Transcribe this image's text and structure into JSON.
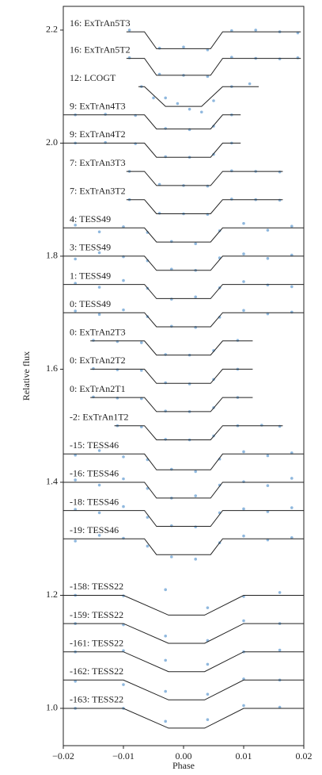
{
  "chart_data": {
    "type": "scatter",
    "xlabel": "Phase",
    "ylabel": "Relative flux",
    "xlim": [
      -0.02,
      0.02
    ],
    "ylim": [
      0.934,
      2.242
    ],
    "xticks": [
      {
        "value": -0.02,
        "label": "−0.02"
      },
      {
        "value": -0.01,
        "label": "−0.01"
      },
      {
        "value": 0,
        "label": "0.00"
      },
      0.01,
      0.02
    ],
    "yticks": [
      {
        "value": 1,
        "label": "1.0"
      },
      1.2,
      1.4,
      1.6,
      1.8,
      {
        "value": 2,
        "label": "2.0"
      },
      2.2
    ],
    "point_color": "#8fb8de",
    "model_color": "#222222",
    "series": [
      {
        "name": "16: ExTrAn5T3",
        "model_x": [
          -0.0095,
          -0.0065,
          -0.0045,
          0.0045,
          0.0065,
          0.0195
        ],
        "model_values": [
          2.197,
          2.197,
          2.167,
          2.167,
          2.197,
          2.197
        ],
        "x": [
          -0.009,
          -0.004,
          0,
          0.004,
          0.008,
          0.012,
          0.016,
          0.019
        ],
        "values": [
          2.2,
          2.168,
          2.17,
          2.165,
          2.199,
          2.2,
          2.197,
          2.195
        ]
      },
      {
        "name": "16: ExTrAn5T2",
        "model_x": [
          -0.0095,
          -0.0065,
          -0.0045,
          0.0045,
          0.0065,
          0.0195
        ],
        "model_values": [
          2.15,
          2.15,
          2.12,
          2.12,
          2.15,
          2.15
        ],
        "x": [
          -0.009,
          -0.004,
          0,
          0.004,
          0.008,
          0.012,
          0.016,
          0.019
        ],
        "values": [
          2.151,
          2.122,
          2.12,
          2.118,
          2.152,
          2.15,
          2.149,
          2.151
        ]
      },
      {
        "name": "12: LCOGT",
        "model_x": [
          -0.0075,
          -0.0065,
          -0.003,
          0.003,
          0.0065,
          0.0125
        ],
        "model_values": [
          2.1,
          2.1,
          2.065,
          2.065,
          2.1,
          2.1
        ],
        "x": [
          -0.007,
          -0.005,
          -0.003,
          -0.001,
          0.001,
          0.003,
          0.005,
          0.008,
          0.011
        ],
        "values": [
          2.1,
          2.08,
          2.08,
          2.07,
          2.06,
          2.055,
          2.075,
          2.1,
          2.105
        ]
      },
      {
        "name": "9: ExTrAn4T3",
        "model_x": [
          -0.02,
          -0.0065,
          -0.0045,
          0.0045,
          0.0065,
          0.0095
        ],
        "model_values": [
          2.05,
          2.05,
          2.025,
          2.025,
          2.05,
          2.05
        ],
        "x": [
          -0.018,
          -0.013,
          -0.008,
          -0.003,
          0.001,
          0.005,
          0.008
        ],
        "values": [
          2.05,
          2.051,
          2.049,
          2.026,
          2.024,
          2.03,
          2.05
        ]
      },
      {
        "name": "9: ExTrAn4T2",
        "model_x": [
          -0.02,
          -0.0065,
          -0.0045,
          0.0045,
          0.0065,
          0.0095
        ],
        "model_values": [
          2.0,
          2.0,
          1.975,
          1.975,
          2.0,
          2.0
        ],
        "x": [
          -0.018,
          -0.013,
          -0.008,
          -0.003,
          0.001,
          0.005,
          0.008
        ],
        "values": [
          2.0,
          2.001,
          1.999,
          1.976,
          1.975,
          1.98,
          2.0
        ]
      },
      {
        "name": "7: ExTrAn3T3",
        "model_x": [
          -0.0095,
          -0.0065,
          -0.0045,
          0.0045,
          0.0065,
          0.0165
        ],
        "model_values": [
          1.95,
          1.95,
          1.925,
          1.925,
          1.95,
          1.95
        ],
        "x": [
          -0.009,
          -0.004,
          0,
          0.004,
          0.008,
          0.012,
          0.016
        ],
        "values": [
          1.95,
          1.927,
          1.925,
          1.924,
          1.951,
          1.95,
          1.949
        ]
      },
      {
        "name": "7: ExTrAn3T2",
        "model_x": [
          -0.0095,
          -0.0065,
          -0.0045,
          0.0045,
          0.0065,
          0.0165
        ],
        "model_values": [
          1.9,
          1.9,
          1.875,
          1.875,
          1.9,
          1.9
        ],
        "x": [
          -0.009,
          -0.004,
          0,
          0.004,
          0.008,
          0.012,
          0.016
        ],
        "values": [
          1.9,
          1.876,
          1.875,
          1.874,
          1.901,
          1.9,
          1.899
        ]
      },
      {
        "name": "4: TESS49",
        "model_x": [
          -0.02,
          -0.0065,
          -0.0045,
          0.0045,
          0.0065,
          0.02
        ],
        "model_values": [
          1.85,
          1.85,
          1.825,
          1.825,
          1.85,
          1.85
        ],
        "x": [
          -0.018,
          -0.014,
          -0.01,
          -0.006,
          -0.002,
          0.002,
          0.006,
          0.01,
          0.014,
          0.018
        ],
        "values": [
          1.855,
          1.843,
          1.852,
          1.842,
          1.826,
          1.822,
          1.845,
          1.858,
          1.846,
          1.853
        ]
      },
      {
        "name": "3: TESS49",
        "model_x": [
          -0.02,
          -0.0065,
          -0.0045,
          0.0045,
          0.0065,
          0.02
        ],
        "model_values": [
          1.8,
          1.8,
          1.775,
          1.775,
          1.8,
          1.8
        ],
        "x": [
          -0.018,
          -0.014,
          -0.01,
          -0.006,
          -0.002,
          0.002,
          0.006,
          0.01,
          0.014,
          0.018
        ],
        "values": [
          1.795,
          1.806,
          1.799,
          1.792,
          1.777,
          1.775,
          1.797,
          1.804,
          1.796,
          1.802
        ]
      },
      {
        "name": "1: TESS49",
        "model_x": [
          -0.02,
          -0.0065,
          -0.0045,
          0.0045,
          0.0065,
          0.02
        ],
        "model_values": [
          1.75,
          1.75,
          1.725,
          1.725,
          1.75,
          1.75
        ],
        "x": [
          -0.018,
          -0.014,
          -0.01,
          -0.006,
          -0.002,
          0.002,
          0.006,
          0.01,
          0.014,
          0.018
        ],
        "values": [
          1.752,
          1.745,
          1.757,
          1.743,
          1.724,
          1.728,
          1.744,
          1.755,
          1.749,
          1.746
        ]
      },
      {
        "name": "0: TESS49",
        "model_x": [
          -0.02,
          -0.0065,
          -0.0045,
          0.0045,
          0.0065,
          0.02
        ],
        "model_values": [
          1.7,
          1.7,
          1.675,
          1.675,
          1.7,
          1.7
        ],
        "x": [
          -0.018,
          -0.014,
          -0.01,
          -0.006,
          -0.002,
          0.002,
          0.006,
          0.01,
          0.014,
          0.018
        ],
        "values": [
          1.703,
          1.697,
          1.705,
          1.693,
          1.676,
          1.674,
          1.692,
          1.704,
          1.698,
          1.701
        ]
      },
      {
        "name": "0: ExTrAn2T3",
        "model_x": [
          -0.0155,
          -0.0065,
          -0.0045,
          0.0045,
          0.0065,
          0.0115
        ],
        "model_values": [
          1.65,
          1.65,
          1.625,
          1.625,
          1.65,
          1.65
        ],
        "x": [
          -0.015,
          -0.011,
          -0.007,
          -0.003,
          0.001,
          0.005,
          0.009
        ],
        "values": [
          1.651,
          1.649,
          1.647,
          1.626,
          1.625,
          1.633,
          1.651
        ]
      },
      {
        "name": "0: ExTrAn2T2",
        "model_x": [
          -0.0155,
          -0.0065,
          -0.0045,
          0.0045,
          0.0065,
          0.0115
        ],
        "model_values": [
          1.6,
          1.6,
          1.575,
          1.575,
          1.6,
          1.6
        ],
        "x": [
          -0.015,
          -0.011,
          -0.007,
          -0.003,
          0.001,
          0.005,
          0.009
        ],
        "values": [
          1.601,
          1.599,
          1.598,
          1.576,
          1.574,
          1.582,
          1.6
        ]
      },
      {
        "name": "0: ExTrAn2T1",
        "model_x": [
          -0.0155,
          -0.0065,
          -0.0045,
          0.0045,
          0.0065,
          0.0115
        ],
        "model_values": [
          1.55,
          1.55,
          1.525,
          1.525,
          1.55,
          1.55
        ],
        "x": [
          -0.015,
          -0.011,
          -0.007,
          -0.003,
          0.001,
          0.005,
          0.009
        ],
        "values": [
          1.551,
          1.549,
          1.548,
          1.526,
          1.525,
          1.532,
          1.55
        ]
      },
      {
        "name": "-2: ExTrAn1T2",
        "model_x": [
          -0.0115,
          -0.0065,
          -0.0045,
          0.0045,
          0.0065,
          0.0165
        ],
        "model_values": [
          1.5,
          1.5,
          1.475,
          1.475,
          1.5,
          1.5
        ],
        "x": [
          -0.011,
          -0.007,
          -0.003,
          0.001,
          0.005,
          0.009,
          0.013,
          0.016
        ],
        "values": [
          1.5,
          1.498,
          1.476,
          1.475,
          1.482,
          1.5,
          1.501,
          1.499
        ]
      },
      {
        "name": "-15: TESS46",
        "model_x": [
          -0.02,
          -0.0065,
          -0.0045,
          0.0045,
          0.0065,
          0.02
        ],
        "model_values": [
          1.45,
          1.45,
          1.422,
          1.422,
          1.45,
          1.45
        ],
        "x": [
          -0.018,
          -0.014,
          -0.01,
          -0.006,
          -0.002,
          0.002,
          0.006,
          0.01,
          0.014,
          0.018
        ],
        "values": [
          1.448,
          1.456,
          1.445,
          1.44,
          1.423,
          1.419,
          1.441,
          1.454,
          1.447,
          1.452
        ]
      },
      {
        "name": "-16: TESS46",
        "model_x": [
          -0.02,
          -0.0065,
          -0.0045,
          0.0045,
          0.0065,
          0.02
        ],
        "model_values": [
          1.4,
          1.4,
          1.372,
          1.372,
          1.4,
          1.4
        ],
        "x": [
          -0.018,
          -0.014,
          -0.01,
          -0.006,
          -0.002,
          0.002,
          0.006,
          0.01,
          0.014,
          0.018
        ],
        "values": [
          1.404,
          1.395,
          1.406,
          1.389,
          1.372,
          1.376,
          1.395,
          1.401,
          1.394,
          1.407
        ]
      },
      {
        "name": "-18: TESS46",
        "model_x": [
          -0.02,
          -0.0065,
          -0.0045,
          0.0045,
          0.0065,
          0.02
        ],
        "model_values": [
          1.35,
          1.35,
          1.322,
          1.322,
          1.35,
          1.35
        ],
        "x": [
          -0.018,
          -0.014,
          -0.01,
          -0.006,
          -0.002,
          0.002,
          0.006,
          0.01,
          0.014,
          0.018
        ],
        "values": [
          1.352,
          1.346,
          1.357,
          1.338,
          1.323,
          1.321,
          1.346,
          1.353,
          1.348,
          1.355
        ]
      },
      {
        "name": "-19: TESS46",
        "model_x": [
          -0.02,
          -0.0065,
          -0.0045,
          0.0045,
          0.0065,
          0.02
        ],
        "model_values": [
          1.3,
          1.3,
          1.272,
          1.272,
          1.3,
          1.3
        ],
        "x": [
          -0.018,
          -0.014,
          -0.01,
          -0.006,
          -0.002,
          0.002,
          0.006,
          0.01,
          0.014,
          0.018
        ],
        "values": [
          1.296,
          1.306,
          1.301,
          1.287,
          1.268,
          1.264,
          1.293,
          1.305,
          1.298,
          1.302
        ]
      },
      {
        "name": "-158: TESS22",
        "model_x": [
          -0.02,
          -0.01,
          -0.0025,
          0.0035,
          0.01,
          0.02
        ],
        "model_values": [
          1.2,
          1.2,
          1.165,
          1.165,
          1.2,
          1.2
        ],
        "x": [
          -0.018,
          -0.01,
          -0.003,
          0.004,
          0.01,
          0.016
        ],
        "values": [
          1.2,
          1.199,
          1.21,
          1.178,
          1.198,
          1.205
        ]
      },
      {
        "name": "-159: TESS22",
        "model_x": [
          -0.02,
          -0.01,
          -0.0025,
          0.0035,
          0.01,
          0.02
        ],
        "model_values": [
          1.15,
          1.15,
          1.115,
          1.115,
          1.15,
          1.15
        ],
        "x": [
          -0.018,
          -0.01,
          -0.003,
          0.004,
          0.01,
          0.016
        ],
        "values": [
          1.15,
          1.148,
          1.128,
          1.12,
          1.155,
          1.15
        ]
      },
      {
        "name": "-161: TESS22",
        "model_x": [
          -0.02,
          -0.01,
          -0.0025,
          0.0035,
          0.01,
          0.02
        ],
        "model_values": [
          1.1,
          1.1,
          1.065,
          1.065,
          1.1,
          1.1
        ],
        "x": [
          -0.018,
          -0.01,
          -0.003,
          0.004,
          0.01,
          0.016
        ],
        "values": [
          1.1,
          1.102,
          1.085,
          1.078,
          1.1,
          1.103
        ]
      },
      {
        "name": "-162: TESS22",
        "model_x": [
          -0.02,
          -0.01,
          -0.0025,
          0.0035,
          0.01,
          0.02
        ],
        "model_values": [
          1.05,
          1.05,
          1.015,
          1.015,
          1.05,
          1.05
        ],
        "x": [
          -0.018,
          -0.01,
          -0.003,
          0.004,
          0.01,
          0.016
        ],
        "values": [
          1.048,
          1.042,
          1.03,
          1.025,
          1.052,
          1.05
        ]
      },
      {
        "name": "-163: TESS22",
        "model_x": [
          -0.02,
          -0.01,
          -0.0025,
          0.0035,
          0.01,
          0.02
        ],
        "model_values": [
          1.0,
          1.0,
          0.965,
          0.965,
          1.0,
          1.0
        ],
        "x": [
          -0.018,
          -0.01,
          -0.003,
          0.004,
          0.01,
          0.016
        ],
        "values": [
          1.0,
          1.0,
          0.977,
          0.98,
          1.005,
          1.002
        ]
      }
    ]
  }
}
